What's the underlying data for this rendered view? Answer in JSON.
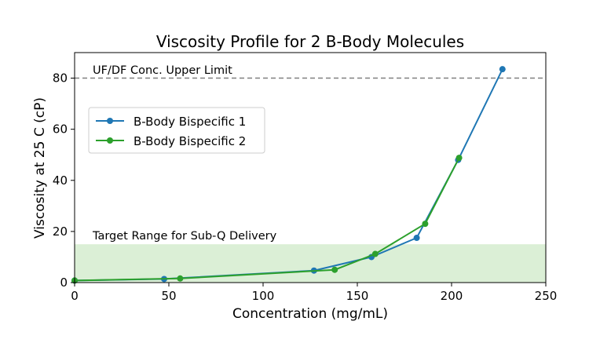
{
  "chart_data": {
    "type": "line",
    "title": "Viscosity Profile for 2 B-Body Molecules",
    "xlabel": "Concentration (mg/mL)",
    "ylabel": "Viscosity at 25 C (cP)",
    "xlim": [
      0,
      250
    ],
    "ylim": [
      0,
      90
    ],
    "xticks": [
      0,
      50,
      100,
      150,
      200,
      250
    ],
    "yticks": [
      0,
      20,
      40,
      60,
      80
    ],
    "grid": false,
    "legend_position": "upper-left",
    "series": [
      {
        "name": "B-Body Bispecific 1",
        "color": "#1f77b4",
        "x": [
          0,
          47.5,
          127,
          157.5,
          181.5,
          203.5,
          227
        ],
        "y": [
          0.8,
          1.4,
          4.7,
          10.0,
          17.5,
          48.0,
          83.5
        ]
      },
      {
        "name": "B-Body Bispecific 2",
        "color": "#2ca02c",
        "x": [
          0,
          56,
          138,
          159.5,
          186,
          204
        ],
        "y": [
          0.8,
          1.6,
          5.0,
          11.2,
          23.0,
          48.8
        ]
      }
    ],
    "annotations": {
      "upper_limit": {
        "label": "UF/DF Conc. Upper Limit",
        "y": 80,
        "color": "#808080"
      },
      "target_band": {
        "label": "Target Range for Sub-Q Delivery",
        "y_from": 0,
        "y_to": 15,
        "color": "#c8e6c0"
      }
    }
  }
}
